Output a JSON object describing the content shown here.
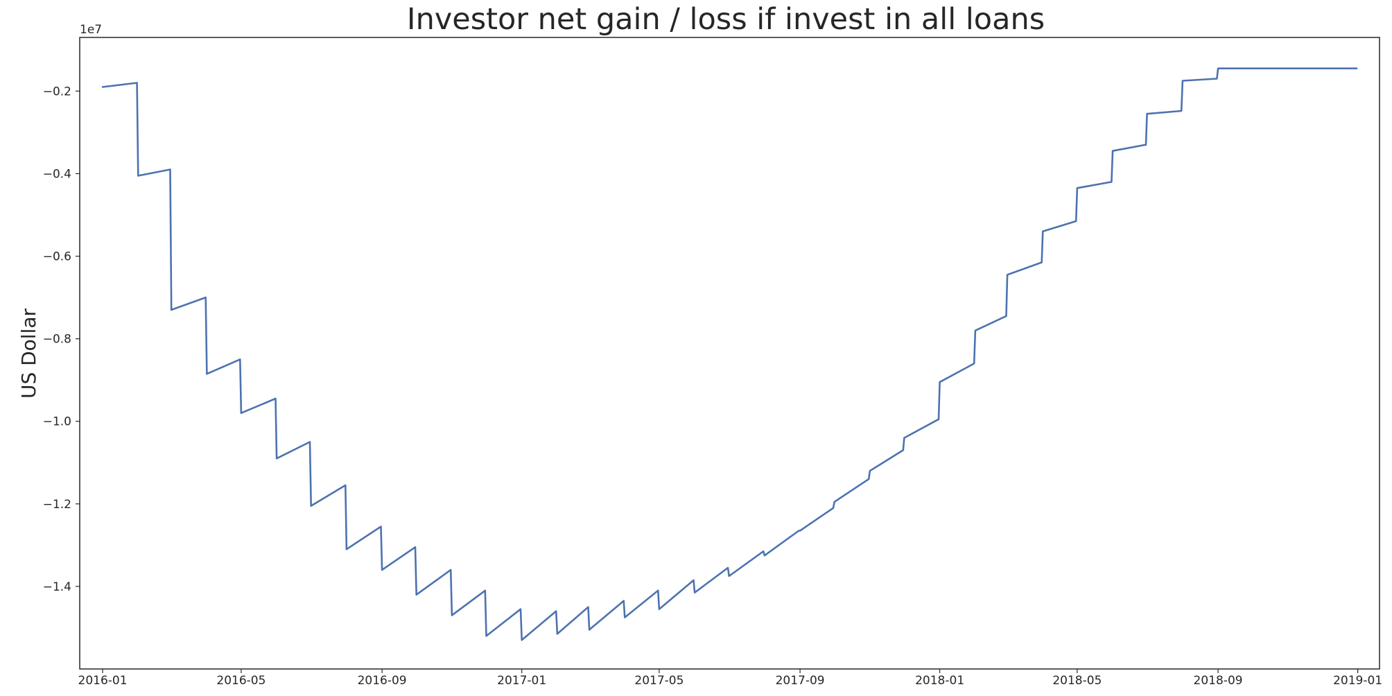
{
  "chart_data": {
    "type": "line",
    "title": "Investor net gain / loss if invest in all loans",
    "xlabel": "",
    "ylabel": "US Dollar",
    "y_offset_text": "1e7",
    "y_scale": 10000000,
    "xlim": [
      "2015-12-12",
      "2019-01-20"
    ],
    "ylim": [
      -1.6,
      -0.07
    ],
    "grid": false,
    "x_ticks": [
      "2016-01",
      "2016-05",
      "2016-09",
      "2017-01",
      "2017-05",
      "2017-09",
      "2018-01",
      "2018-05",
      "2018-09",
      "2019-01"
    ],
    "y_ticks": [
      -1.4,
      -1.2,
      -1.0,
      -0.8,
      -0.6,
      -0.4,
      -0.2
    ],
    "y_tick_labels": [
      "−1.4",
      "−1.2",
      "−1.0",
      "−0.8",
      "−0.6",
      "−0.4",
      "−0.2"
    ],
    "series": [
      {
        "color": "#4c72b0",
        "x": [
          "2016-01-01",
          "2016-01-31",
          "2016-02-01",
          "2016-02-29",
          "2016-03-01",
          "2016-03-31",
          "2016-04-01",
          "2016-04-30",
          "2016-05-01",
          "2016-05-31",
          "2016-06-01",
          "2016-06-30",
          "2016-07-01",
          "2016-07-31",
          "2016-08-01",
          "2016-08-31",
          "2016-09-01",
          "2016-09-30",
          "2016-10-01",
          "2016-10-31",
          "2016-11-01",
          "2016-11-30",
          "2016-12-01",
          "2016-12-31",
          "2017-01-01",
          "2017-01-31",
          "2017-02-01",
          "2017-02-28",
          "2017-03-01",
          "2017-03-31",
          "2017-04-01",
          "2017-04-30",
          "2017-05-01",
          "2017-05-31",
          "2017-06-01",
          "2017-06-30",
          "2017-07-01",
          "2017-07-31",
          "2017-08-01",
          "2017-08-31",
          "2017-09-01",
          "2017-09-30",
          "2017-10-01",
          "2017-10-31",
          "2017-11-01",
          "2017-11-30",
          "2017-12-01",
          "2017-12-31",
          "2018-01-01",
          "2018-01-31",
          "2018-02-01",
          "2018-02-28",
          "2018-03-01",
          "2018-03-31",
          "2018-04-01",
          "2018-04-30",
          "2018-05-01",
          "2018-05-31",
          "2018-06-01",
          "2018-06-30",
          "2018-07-01",
          "2018-07-31",
          "2018-08-01",
          "2018-08-31",
          "2018-09-01",
          "2018-12-31"
        ],
        "values": [
          -0.19,
          -0.18,
          -0.405,
          -0.39,
          -0.73,
          -0.7,
          -0.885,
          -0.85,
          -0.98,
          -0.945,
          -1.09,
          -1.05,
          -1.205,
          -1.155,
          -1.31,
          -1.255,
          -1.36,
          -1.305,
          -1.42,
          -1.36,
          -1.47,
          -1.41,
          -1.52,
          -1.455,
          -1.53,
          -1.46,
          -1.515,
          -1.45,
          -1.505,
          -1.435,
          -1.475,
          -1.41,
          -1.455,
          -1.385,
          -1.415,
          -1.355,
          -1.375,
          -1.315,
          -1.325,
          -1.265,
          -1.265,
          -1.21,
          -1.195,
          -1.14,
          -1.12,
          -1.07,
          -1.04,
          -0.995,
          -0.905,
          -0.86,
          -0.78,
          -0.745,
          -0.645,
          -0.615,
          -0.54,
          -0.515,
          -0.435,
          -0.42,
          -0.345,
          -0.33,
          -0.255,
          -0.248,
          -0.175,
          -0.17,
          -0.145,
          -0.145
        ]
      }
    ]
  }
}
